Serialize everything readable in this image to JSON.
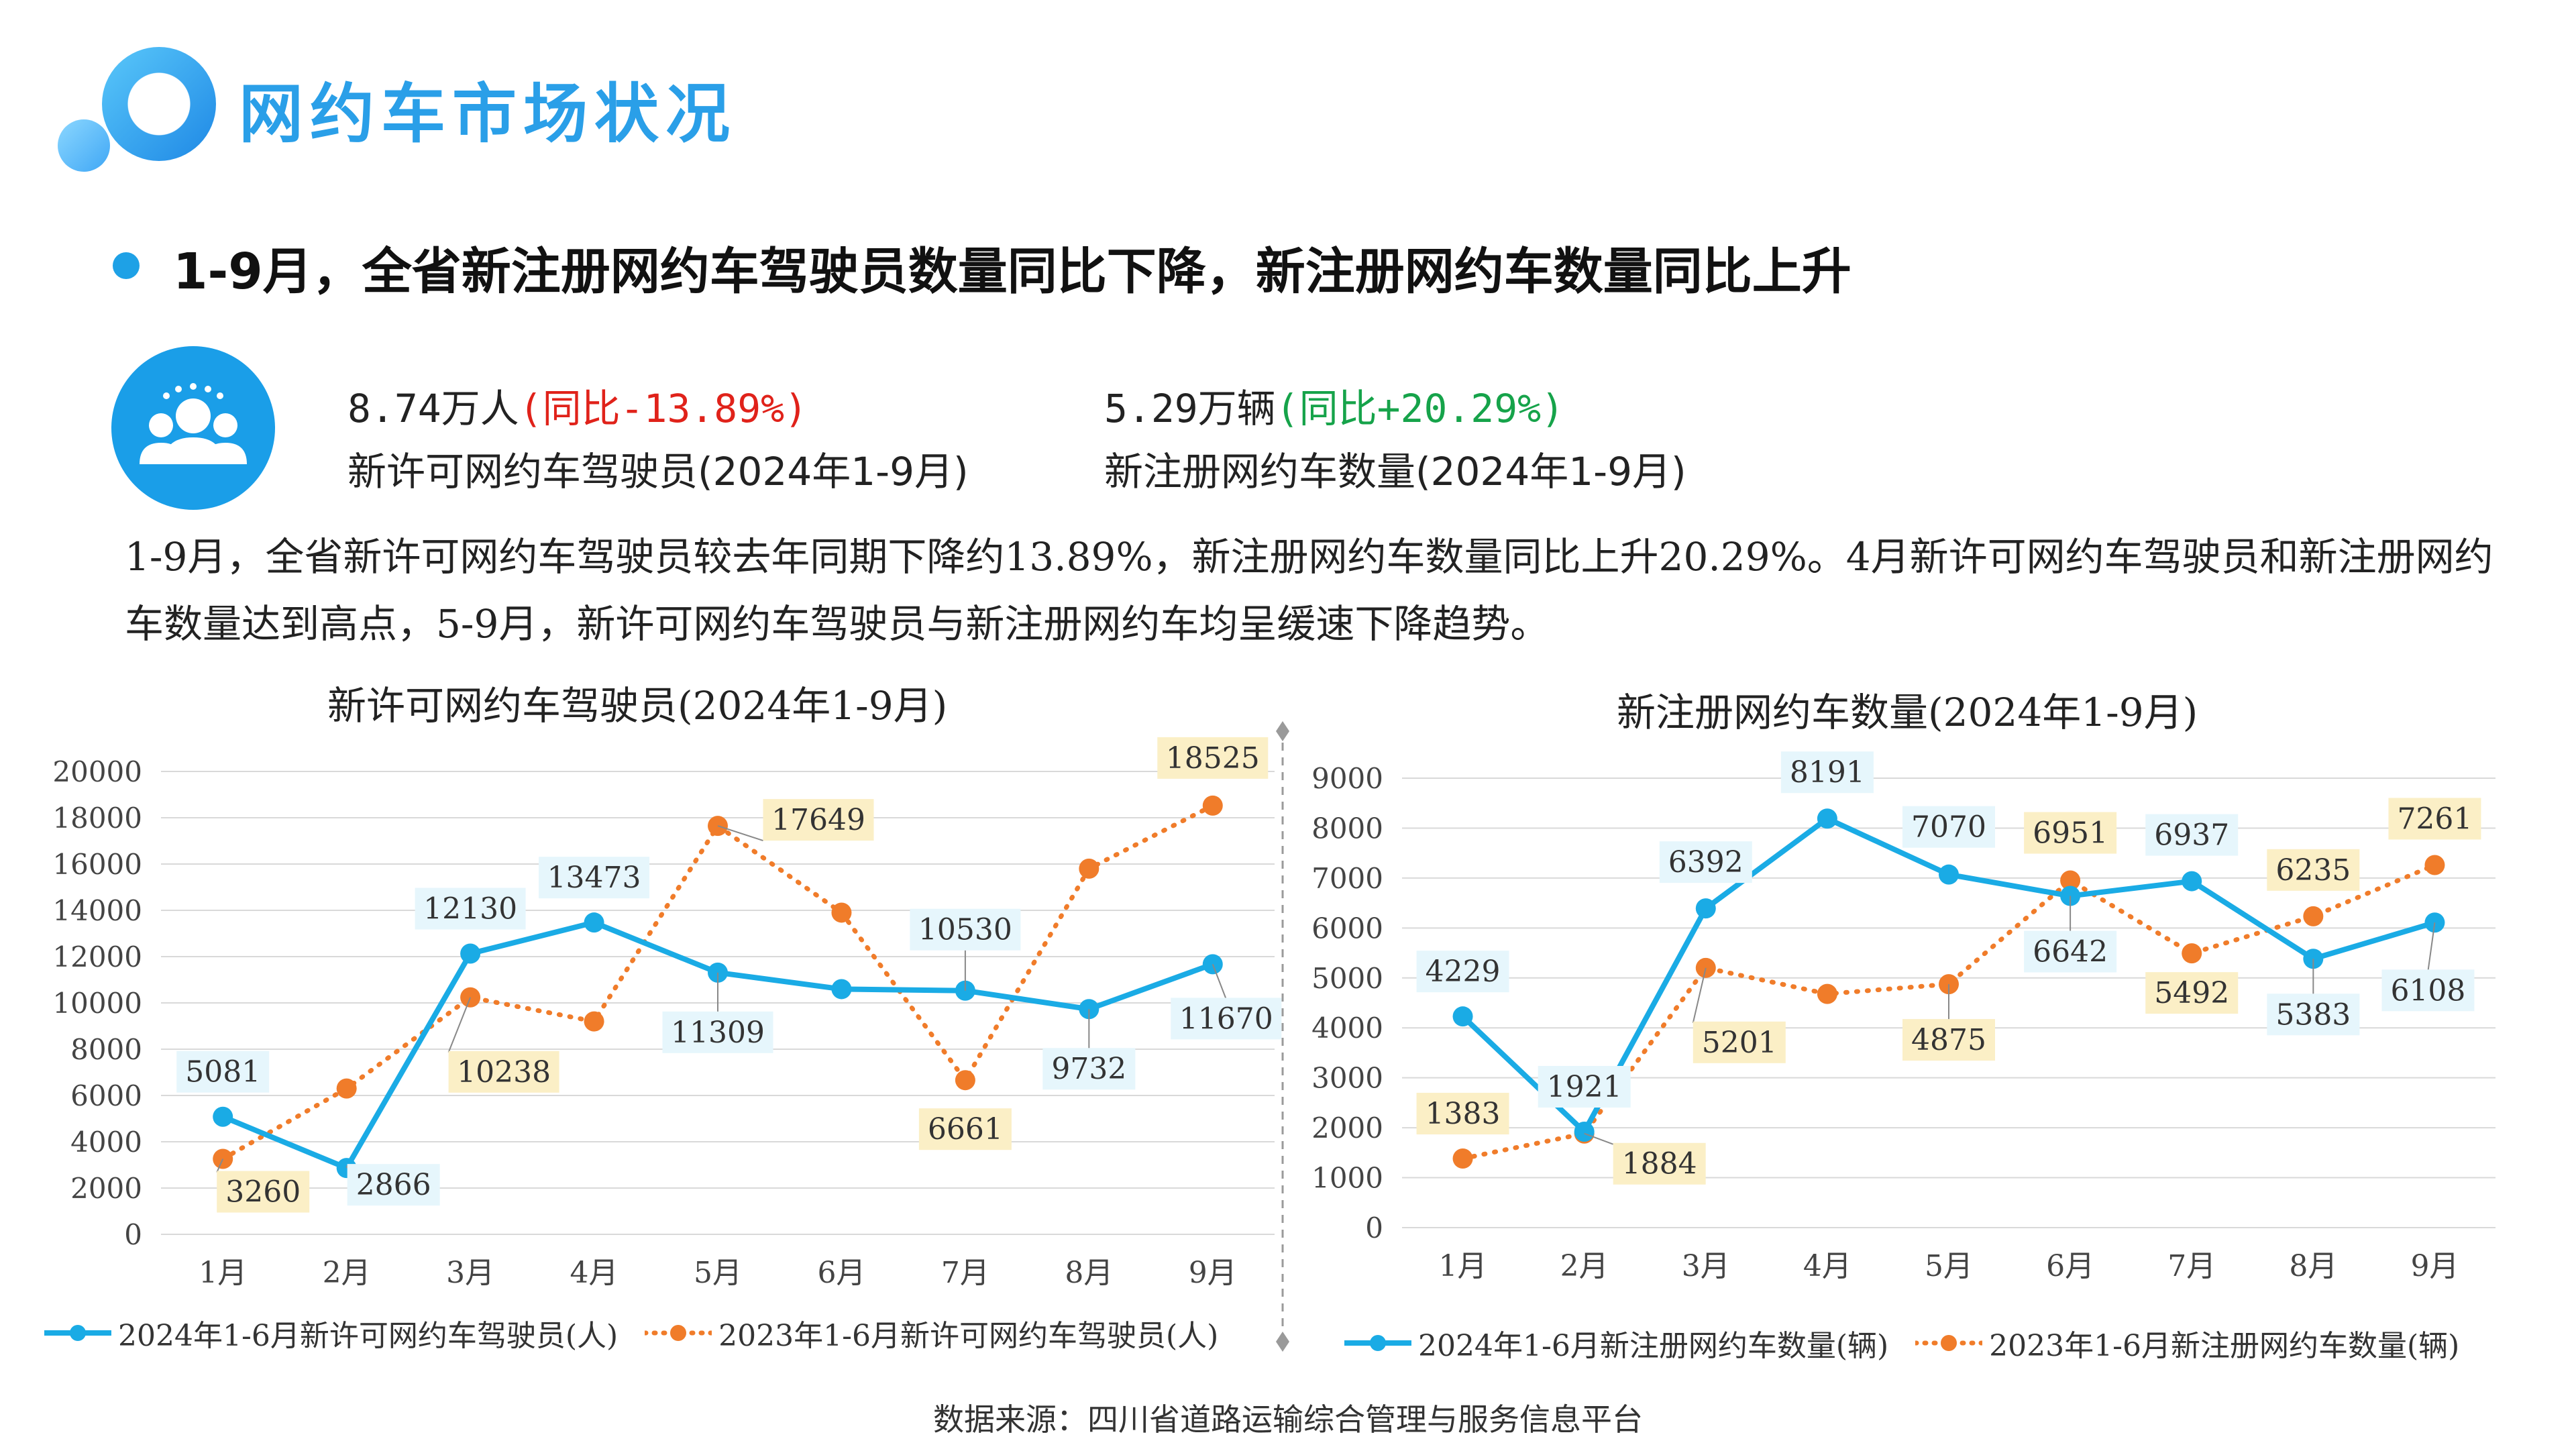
{
  "header": {
    "title": "网约车市场状况"
  },
  "headline": "1-9月，全省新注册网约车驾驶员数量同比下降，新注册网约车数量同比上升",
  "kpis": {
    "icon": "people-group-icon",
    "drivers": {
      "value": "8.74万人",
      "change": "(同比-13.89%)",
      "label": "新许可网约车驾驶员(2024年1-9月)"
    },
    "vehicles": {
      "value": "5.29万辆",
      "change": "(同比+20.29%)",
      "label": "新注册网约车数量(2024年1-9月)"
    }
  },
  "description": "1-9月，全省新许可网约车驾驶员较去年同期下降约13.89%，新注册网约车数量同比上升20.29%。4月新许可网约车驾驶员和新注册网约车数量达到高点，5-9月，新许可网约车驾驶员与新注册网约车均呈缓速下降趋势。",
  "colors": {
    "series_2024": "#1aabe5",
    "series_2023": "#f07c2a",
    "label_2024_bg": "#e6f6fc",
    "label_2023_bg": "#fbefc6",
    "grid": "#d9d9d9"
  },
  "chart_data": [
    {
      "type": "line",
      "title": "新许可网约车驾驶员(2024年1-9月)",
      "categories": [
        "1月",
        "2月",
        "3月",
        "4月",
        "5月",
        "6月",
        "7月",
        "8月",
        "9月"
      ],
      "ylim": [
        0,
        20000
      ],
      "yticks": [
        "0",
        "2000",
        "4000",
        "6000",
        "8000",
        "10000",
        "12000",
        "14000",
        "16000",
        "18000",
        "20000"
      ],
      "grid": true,
      "legend_placement": "bottom",
      "series": [
        {
          "name": "2024年1-6月新许可网约车驾驶员(人)",
          "style": "solid",
          "values": [
            5081,
            2866,
            12130,
            13473,
            11309,
            10596,
            10530,
            9732,
            11670
          ],
          "labels": [
            "5081",
            "2866",
            "12130",
            "13473",
            "11309",
            "",
            "10530",
            "9732",
            "11670"
          ]
        },
        {
          "name": "2023年1-6月新许可网约车驾驶员(人)",
          "style": "dotted",
          "values": [
            3260,
            6300,
            10238,
            9200,
            17649,
            13900,
            6661,
            15800,
            18525
          ],
          "labels": [
            "3260",
            "",
            "10238",
            "",
            "17649",
            "",
            "6661",
            "",
            "18525"
          ]
        }
      ]
    },
    {
      "type": "line",
      "title": "新注册网约车数量(2024年1-9月)",
      "categories": [
        "1月",
        "2月",
        "3月",
        "4月",
        "5月",
        "6月",
        "7月",
        "8月",
        "9月"
      ],
      "ylim": [
        0,
        9000
      ],
      "yticks": [
        "0",
        "1000",
        "2000",
        "3000",
        "4000",
        "5000",
        "6000",
        "7000",
        "8000",
        "9000"
      ],
      "grid": true,
      "legend_placement": "bottom",
      "series": [
        {
          "name": "2024年1-6月新注册网约车数量(辆)",
          "style": "solid",
          "values": [
            4229,
            1921,
            6392,
            8191,
            7070,
            6642,
            6937,
            5383,
            6108
          ],
          "labels": [
            "4229",
            "1921",
            "6392",
            "8191",
            "7070",
            "6642",
            "6937",
            "5383",
            "6108"
          ]
        },
        {
          "name": "2023年1-6月新注册网约车数量(辆)",
          "style": "dotted",
          "values": [
            1383,
            1884,
            5201,
            4680,
            4875,
            6951,
            5492,
            6235,
            7261
          ],
          "labels": [
            "1383",
            "1884",
            "5201",
            "",
            "4875",
            "6951",
            "5492",
            "6235",
            "7261"
          ]
        }
      ]
    }
  ],
  "source": "数据来源：四川省道路运输综合管理与服务信息平台"
}
